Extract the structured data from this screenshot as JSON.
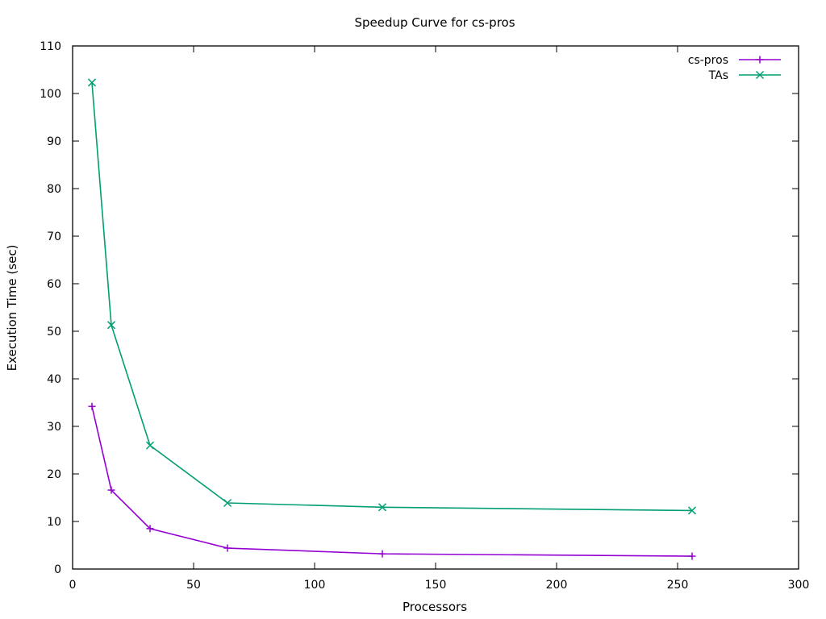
{
  "chart_data": {
    "type": "line",
    "title": "Speedup Curve for cs-pros",
    "xlabel": "Processors",
    "ylabel": "Execution Time (sec)",
    "xlim": [
      0,
      300
    ],
    "ylim": [
      0,
      110
    ],
    "xticks": [
      0,
      50,
      100,
      150,
      200,
      250,
      300
    ],
    "yticks": [
      0,
      10,
      20,
      30,
      40,
      50,
      60,
      70,
      80,
      90,
      100,
      110
    ],
    "grid": false,
    "legend_position": "top-right",
    "x": [
      8,
      16,
      32,
      64,
      128,
      256
    ],
    "series": [
      {
        "name": "cs-pros",
        "color": "#9400d3",
        "marker": "plus",
        "values": [
          34.2,
          16.6,
          8.5,
          4.4,
          3.2,
          2.7
        ]
      },
      {
        "name": "TAs",
        "color": "#009e73",
        "marker": "cross",
        "values": [
          102.3,
          51.3,
          26.0,
          13.9,
          13.0,
          12.3
        ]
      }
    ]
  }
}
